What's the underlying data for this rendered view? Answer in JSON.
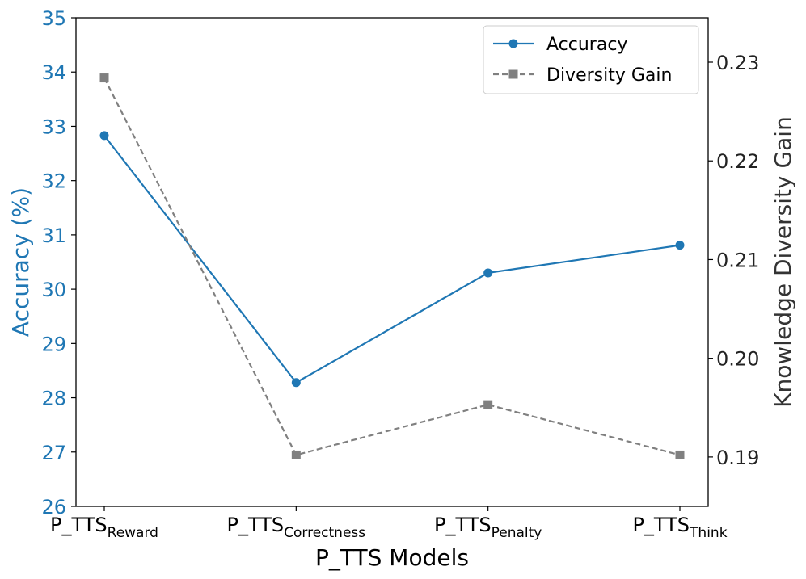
{
  "chart_data": {
    "type": "line",
    "xlabel": "P_TTS Models",
    "categories": [
      {
        "base": "P_TTS",
        "sub": "Reward"
      },
      {
        "base": "P_TTS",
        "sub": "Correctness"
      },
      {
        "base": "P_TTS",
        "sub": "Penalty"
      },
      {
        "base": "P_TTS",
        "sub": "Think"
      }
    ],
    "left_axis": {
      "label": "Accuracy (%)",
      "ylim": [
        26,
        35
      ],
      "ticks": [
        "26",
        "27",
        "28",
        "29",
        "30",
        "31",
        "32",
        "33",
        "34",
        "35"
      ]
    },
    "right_axis": {
      "label": "Knowledge Diversity Gain",
      "ylim": [
        0.185,
        0.2345
      ],
      "ticks": [
        "0.19",
        "0.20",
        "0.21",
        "0.22",
        "0.23"
      ]
    },
    "series": [
      {
        "name": "Accuracy",
        "axis": "left",
        "color": "#1f77b4",
        "style": "solid",
        "marker": "circle",
        "values": [
          32.83,
          28.28,
          30.3,
          30.81
        ]
      },
      {
        "name": "Diversity Gain",
        "axis": "right",
        "color": "#808080",
        "style": "dashed",
        "marker": "square",
        "values": [
          0.2284,
          0.1902,
          0.1953,
          0.1902
        ]
      }
    ],
    "legend": {
      "placement": "top-right",
      "entries": [
        "Accuracy",
        "Diversity Gain"
      ]
    }
  }
}
